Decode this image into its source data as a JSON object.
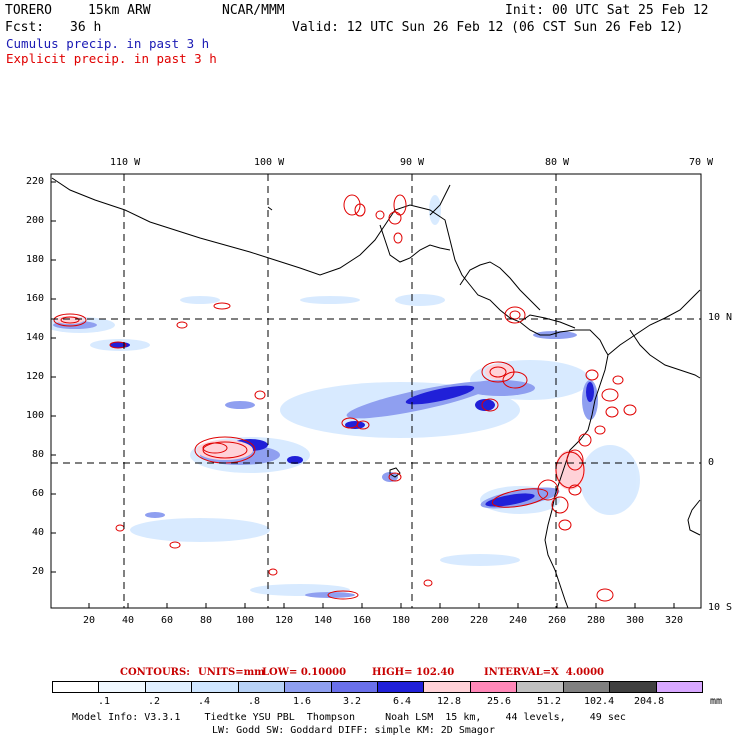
{
  "header": {
    "model": "TORERO",
    "grid": "15km ARW",
    "org": "NCAR/MMM",
    "init": "Init: 00 UTC Sat 25 Feb 12",
    "fcst_label": "Fcst:",
    "fcst_value": "36 h",
    "valid": "Valid: 12 UTC Sun 26 Feb 12 (06 CST Sun 26 Feb 12)",
    "cumulus": "Cumulus precip. in past 3 h",
    "explicit": "Explicit precip. in past 3 h"
  },
  "colors": {
    "cumulus": "#1a1ab4",
    "explicit": "#e00000",
    "contour_text": "#c80000",
    "coast": "#000000"
  },
  "axes": {
    "lon_labels": [
      "110 W",
      "100 W",
      "90 W",
      "80 W",
      "70 W"
    ],
    "lat_labels": [
      "10 N",
      "0",
      "10 S"
    ],
    "y_ticks": [
      "220",
      "200",
      "180",
      "160",
      "140",
      "120",
      "100",
      "80",
      "60",
      "40",
      "20"
    ],
    "x_ticks": [
      "20",
      "40",
      "60",
      "80",
      "100",
      "120",
      "140",
      "160",
      "180",
      "200",
      "220",
      "240",
      "260",
      "280",
      "300",
      "320"
    ]
  },
  "contours": {
    "label": "CONTOURS:",
    "units": "UNITS=mm",
    "low": "LOW= 0.10000",
    "high": "HIGH= 102.40",
    "interval": "INTERVAL=X  4.0000"
  },
  "colorbar": {
    "colors": [
      "#ffffff",
      "#f0f8ff",
      "#e0efff",
      "#cfe6ff",
      "#b8d2f6",
      "#8f9ff0",
      "#6a70ea",
      "#2020d8",
      "#ffd2d8",
      "#ff88b8",
      "#c0c0c0",
      "#808080",
      "#404040",
      "#d8a8ff"
    ],
    "labels": [
      ".1",
      ".2",
      ".4",
      ".8",
      "1.6",
      "3.2",
      "6.4",
      "12.8",
      "25.6",
      "51.2",
      "102.4",
      "204.8"
    ],
    "unit": "mm"
  },
  "footer": {
    "line1": "Model Info: V3.3.1    Tiedtke YSU PBL  Thompson     Noah LSM  15 km,    44 levels,    49 sec",
    "line2": "LW: Godd SW: Goddard DIFF: simple KM: 2D Smagor"
  }
}
